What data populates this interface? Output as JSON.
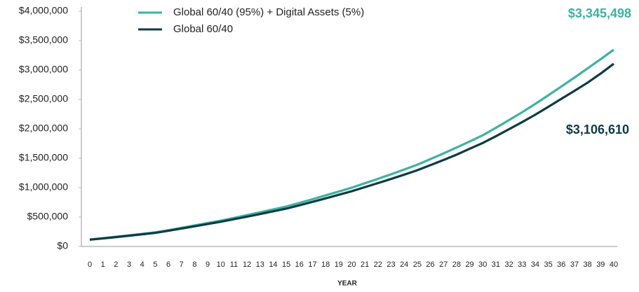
{
  "chart_data": {
    "type": "line",
    "x": [
      0,
      1,
      2,
      3,
      4,
      5,
      6,
      7,
      8,
      9,
      10,
      11,
      12,
      13,
      14,
      15,
      16,
      17,
      18,
      19,
      20,
      21,
      22,
      23,
      24,
      25,
      26,
      27,
      28,
      29,
      30,
      31,
      32,
      33,
      34,
      35,
      36,
      37,
      38,
      39,
      40
    ],
    "xlim": [
      0,
      40
    ],
    "xlabel": "YEAR",
    "ylim": [
      0,
      4000000
    ],
    "yticks": [
      {
        "value": 0,
        "label": "$0"
      },
      {
        "value": 500000,
        "label": "$500,000"
      },
      {
        "value": 1000000,
        "label": "$1,000,000"
      },
      {
        "value": 1500000,
        "label": "$1,500,000"
      },
      {
        "value": 2000000,
        "label": "$2,000,000"
      },
      {
        "value": 2500000,
        "label": "$2,500,000"
      },
      {
        "value": 3000000,
        "label": "$3,000,000"
      },
      {
        "value": 3500000,
        "label": "$3,500,000"
      },
      {
        "value": 4000000,
        "label": "$4,000,000"
      }
    ],
    "grid": false,
    "series": [
      {
        "name": "Global 60/40 (95%) + Digital Assets (5%)",
        "color": "#3db39e",
        "values": [
          120000,
          142000,
          165000,
          190000,
          215000,
          240000,
          278000,
          318000,
          358000,
          399000,
          440000,
          486000,
          533000,
          581000,
          630000,
          680000,
          741000,
          803000,
          868000,
          934000,
          1000000,
          1075000,
          1150000,
          1228000,
          1308000,
          1390000,
          1485000,
          1582000,
          1682000,
          1785000,
          1890000,
          2018000,
          2148000,
          2282000,
          2423000,
          2570000,
          2720000,
          2872000,
          3027000,
          3184000,
          3345498
        ],
        "value_labels": [
          null,
          null,
          null,
          null,
          null,
          null,
          null,
          null,
          null,
          null,
          null,
          null,
          null,
          null,
          null,
          null,
          null,
          null,
          null,
          null,
          null,
          null,
          null,
          null,
          null,
          null,
          null,
          null,
          null,
          null,
          null,
          null,
          null,
          null,
          null,
          null,
          null,
          null,
          null,
          null,
          "$3,345,498"
        ]
      },
      {
        "name": "Global 60/40",
        "color": "#0e3b45",
        "values": [
          115000,
          136000,
          159000,
          183000,
          207000,
          231000,
          267000,
          305000,
          343000,
          382000,
          420000,
          463000,
          507000,
          552000,
          598000,
          643000,
          700000,
          758000,
          818000,
          879000,
          940000,
          1009000,
          1077000,
          1148000,
          1221000,
          1296000,
          1383000,
          1470000,
          1561000,
          1661000,
          1760000,
          1874000,
          1993000,
          2114000,
          2240000,
          2373000,
          2510000,
          2646000,
          2785000,
          2940000,
          3106610
        ],
        "value_labels": [
          null,
          null,
          null,
          null,
          null,
          null,
          null,
          null,
          null,
          null,
          null,
          null,
          null,
          null,
          null,
          null,
          null,
          null,
          null,
          null,
          null,
          null,
          null,
          null,
          null,
          null,
          null,
          null,
          null,
          null,
          null,
          null,
          null,
          null,
          null,
          null,
          null,
          null,
          null,
          null,
          "$3,106,610"
        ]
      }
    ]
  }
}
